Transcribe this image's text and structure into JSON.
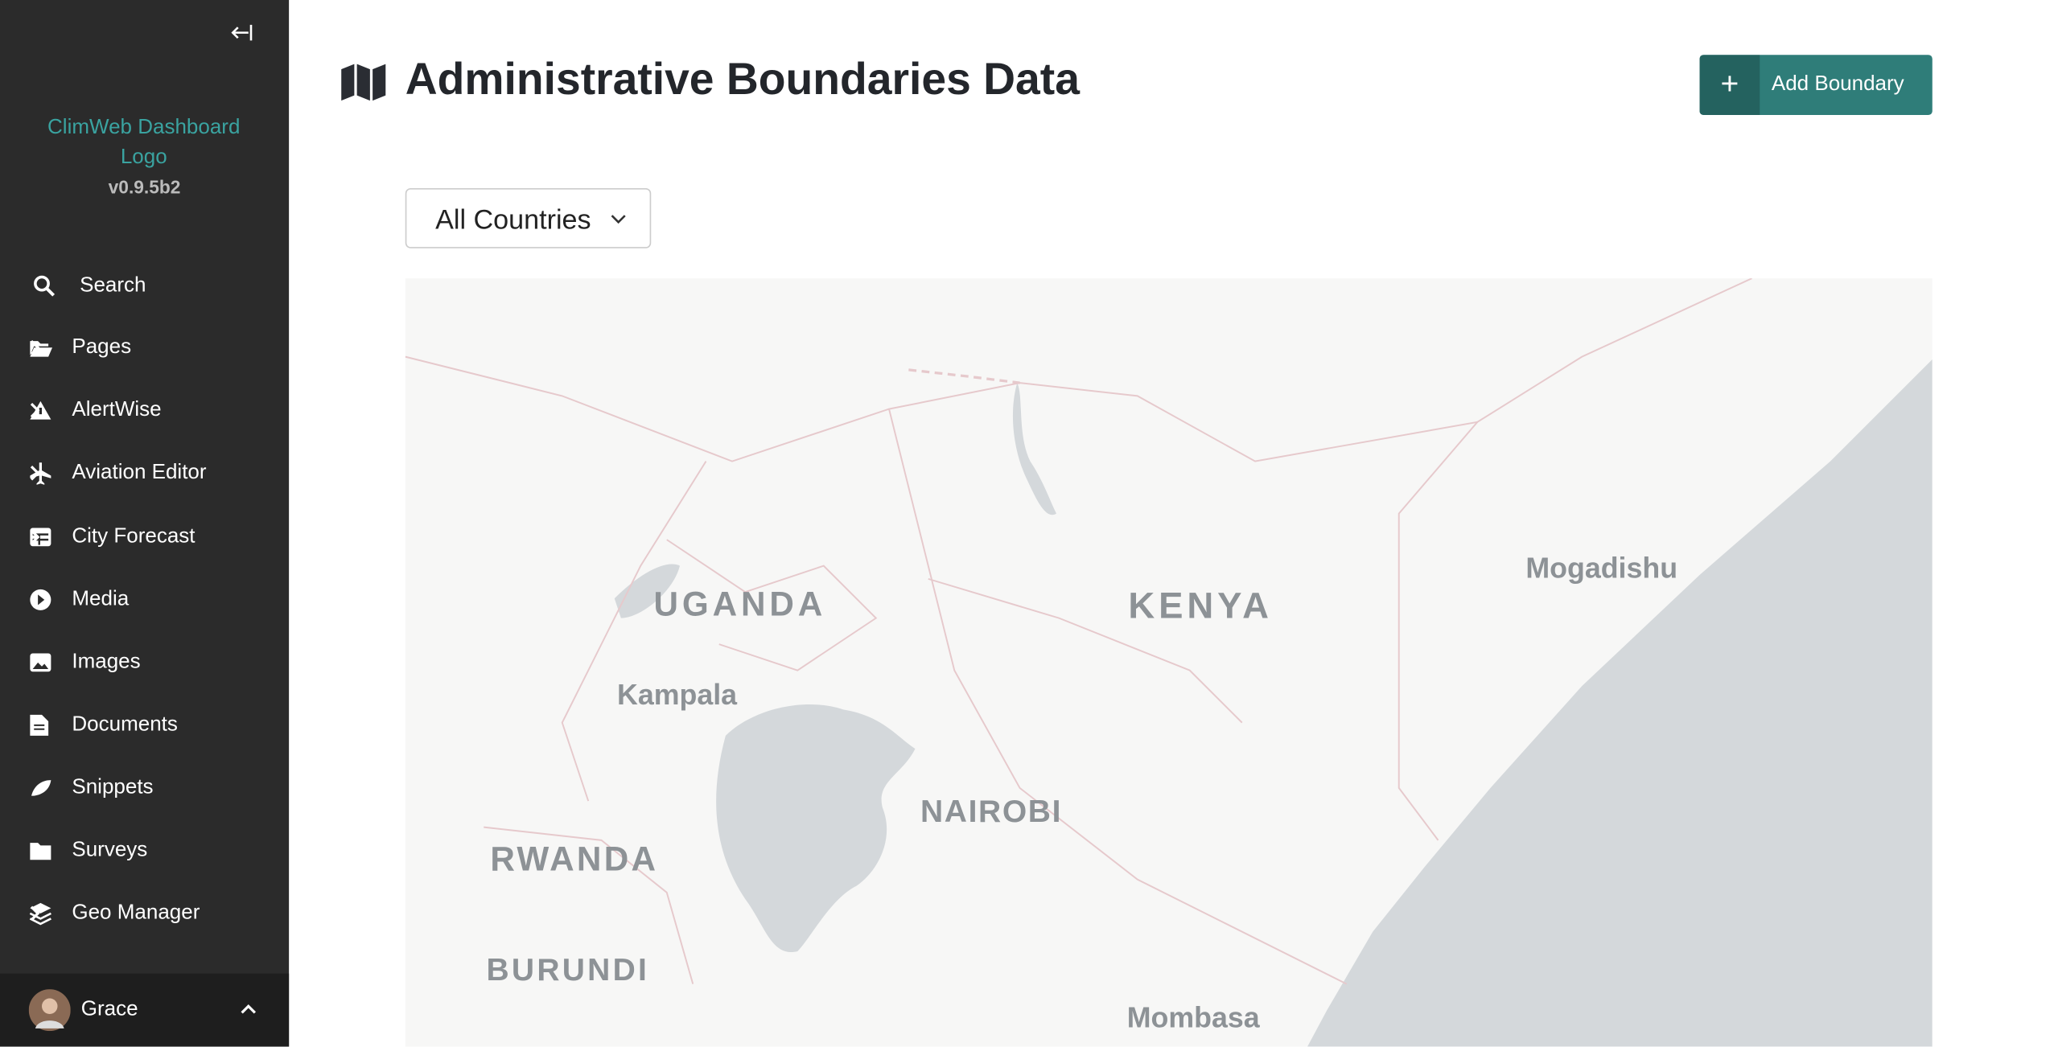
{
  "sidebar": {
    "logo_alt": "ClimWeb Dashboard Logo",
    "version": "v0.9.5b2",
    "items": [
      "Search",
      "Pages",
      "AlertWise",
      "Aviation Editor",
      "City Forecast",
      "Media",
      "Images",
      "Documents",
      "Snippets",
      "Surveys",
      "Geo Manager"
    ],
    "user": "Grace"
  },
  "header": {
    "title": "Administrative Boundaries Data",
    "button": "Add Boundary"
  },
  "filter": {
    "selected": "All Countries"
  },
  "map": {
    "labels": [
      "UGANDA",
      "KENYA",
      "Kampala",
      "NAIROBI",
      "Mogadishu",
      "RWANDA",
      "BURUNDI",
      "Mombasa"
    ]
  }
}
